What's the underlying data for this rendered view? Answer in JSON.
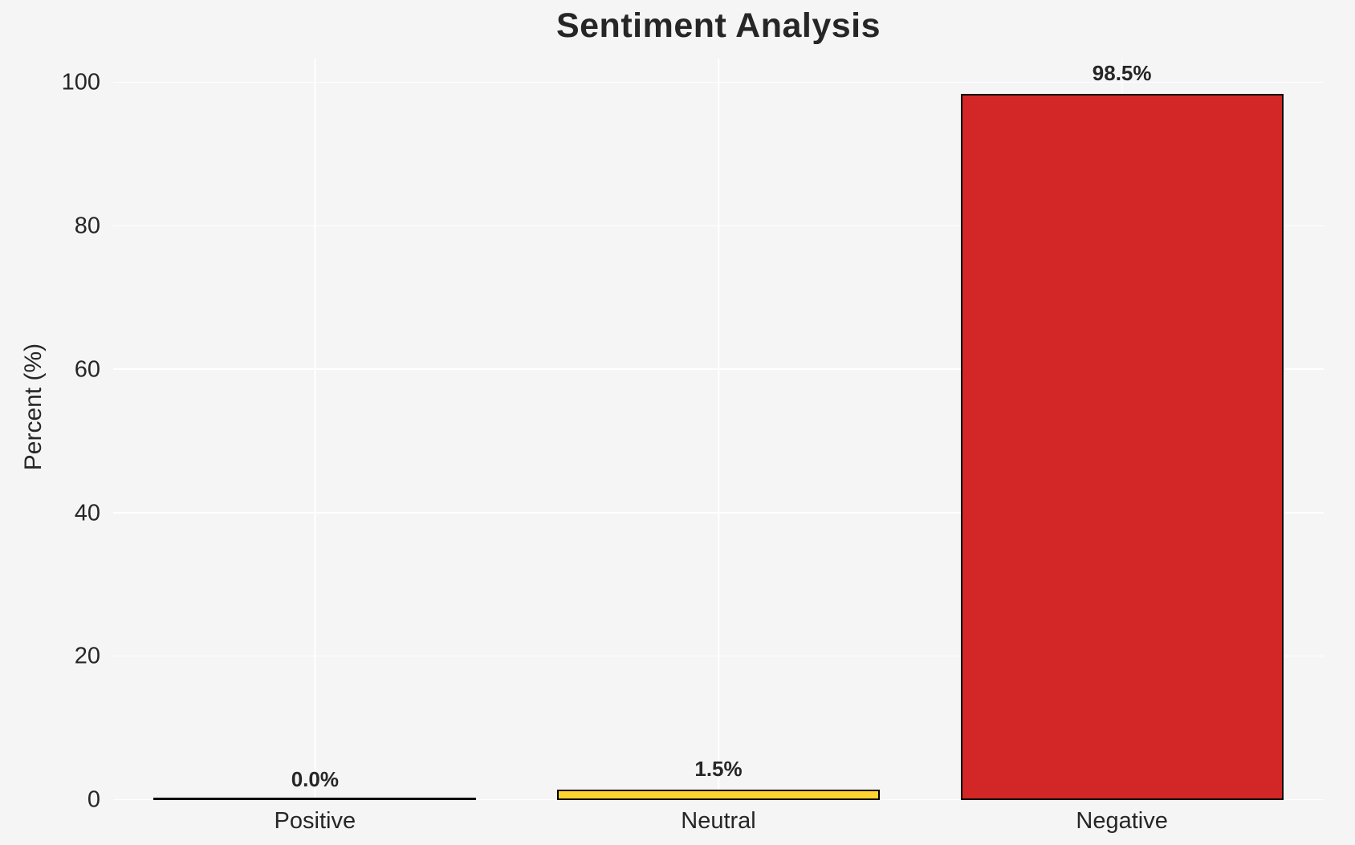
{
  "title": "Sentiment Analysis",
  "colors": {
    "background": "#f5f5f6",
    "grid": "#ffffff",
    "text": "#262626",
    "bar_edge": "#000000",
    "neutral_bar": "#fdd32f",
    "negative_bar": "#d32727"
  },
  "chart_data": {
    "type": "bar",
    "title": "Sentiment Analysis",
    "xlabel": "",
    "ylabel": "Percent (%)",
    "categories": [
      "Positive",
      "Neutral",
      "Negative"
    ],
    "values": [
      0.0,
      1.5,
      98.5
    ],
    "value_labels": [
      "0.0%",
      "1.5%",
      "98.5%"
    ],
    "bar_colors": [
      null,
      "#fdd32f",
      "#d32727"
    ],
    "bar_edge_color": "#000000",
    "yticks": [
      0,
      20,
      40,
      60,
      80,
      100
    ],
    "ylim": [
      0,
      103.4
    ],
    "bar_width_fraction": 0.8,
    "grid": true,
    "legend": "none"
  }
}
